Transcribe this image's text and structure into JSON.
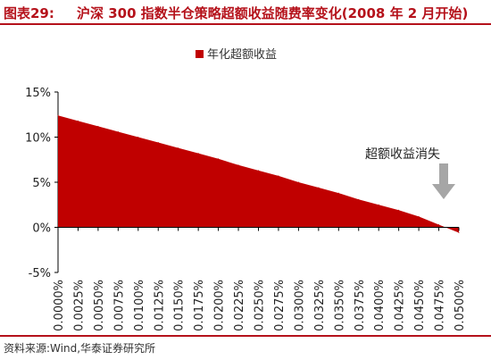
{
  "header": {
    "label": "图表29:",
    "title": "沪深 300 指数半仓策略超额收益随费率变化(2008 年 2 月开始)"
  },
  "footer": {
    "source": "资料来源:Wind,华泰证券研究所"
  },
  "colors": {
    "accent": "#b5121b",
    "series": "#c00000",
    "arrow": "#a6a6a6"
  },
  "chart_data": {
    "type": "area",
    "x": [
      "0.0000%",
      "0.0025%",
      "0.0050%",
      "0.0075%",
      "0.0100%",
      "0.0125%",
      "0.0150%",
      "0.0175%",
      "0.0200%",
      "0.0225%",
      "0.0250%",
      "0.0275%",
      "0.0300%",
      "0.0325%",
      "0.0350%",
      "0.0375%",
      "0.0400%",
      "0.0425%",
      "0.0450%",
      "0.0475%",
      "0.0500%"
    ],
    "series": [
      {
        "name": "年化超额收益",
        "values": [
          12.4,
          11.8,
          11.2,
          10.6,
          10.0,
          9.4,
          8.8,
          8.2,
          7.6,
          6.9,
          6.3,
          5.7,
          5.0,
          4.4,
          3.8,
          3.1,
          2.5,
          1.9,
          1.2,
          0.3,
          -0.6
        ]
      }
    ],
    "yticks": [
      "15%",
      "10%",
      "5%",
      "0%",
      "-5%"
    ],
    "ylim": [
      -5,
      15
    ],
    "legend_position": "top-center",
    "annotation": "超额收益消失",
    "annotation_index": 19
  }
}
